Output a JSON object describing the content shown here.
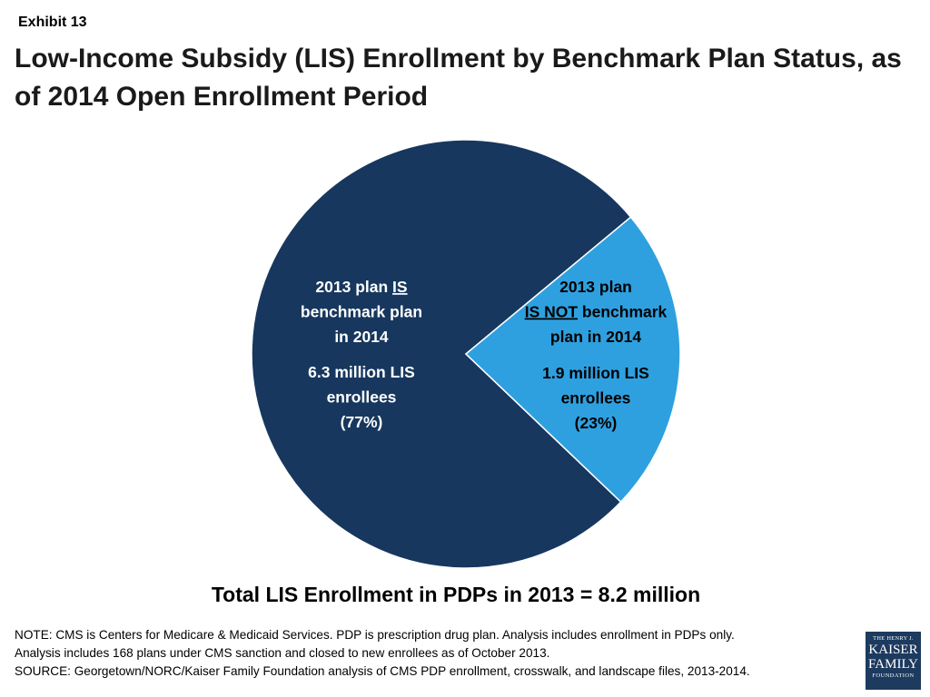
{
  "header": {
    "exhibit": "Exhibit 13",
    "title": "Low-Income Subsidy (LIS) Enrollment by Benchmark Plan Status, as of 2014 Open Enrollment Period"
  },
  "chart_data": {
    "type": "pie",
    "title": "Low-Income Subsidy (LIS) Enrollment by Benchmark Plan Status, as of 2014 Open Enrollment Period",
    "slices": [
      {
        "label_lines": [
          "2013 plan IS",
          "benchmark plan",
          "in 2014"
        ],
        "emphasis": "IS",
        "value": 6.3,
        "unit": "million LIS enrollees",
        "value_lines": [
          "6.3 million LIS",
          "enrollees",
          "(77%)"
        ],
        "percent": 77,
        "color": "#17375e"
      },
      {
        "label_lines": [
          "2013 plan",
          "IS NOT benchmark",
          "plan in 2014"
        ],
        "emphasis": "IS NOT",
        "value": 1.9,
        "unit": "million LIS enrollees",
        "value_lines": [
          "1.9 million LIS",
          "enrollees",
          "(23%)"
        ],
        "percent": 23,
        "color": "#2fa0df"
      }
    ],
    "total": "Total LIS Enrollment in PDPs in 2013 = 8.2 million",
    "legend": "none"
  },
  "footer": {
    "note_lines": [
      "NOTE: CMS is Centers for Medicare & Medicaid Services.  PDP is prescription drug plan.  Analysis includes enrollment in PDPs only.",
      "Analysis includes 168 plans under CMS sanction and closed to new enrollees as of October 2013.",
      "SOURCE: Georgetown/NORC/Kaiser Family Foundation analysis of CMS PDP enrollment, crosswalk, and landscape files, 2013-2014."
    ],
    "logo": {
      "line1": "THE HENRY J.",
      "line2": "KAISER",
      "line3": "FAMILY",
      "line4": "FOUNDATION"
    }
  }
}
